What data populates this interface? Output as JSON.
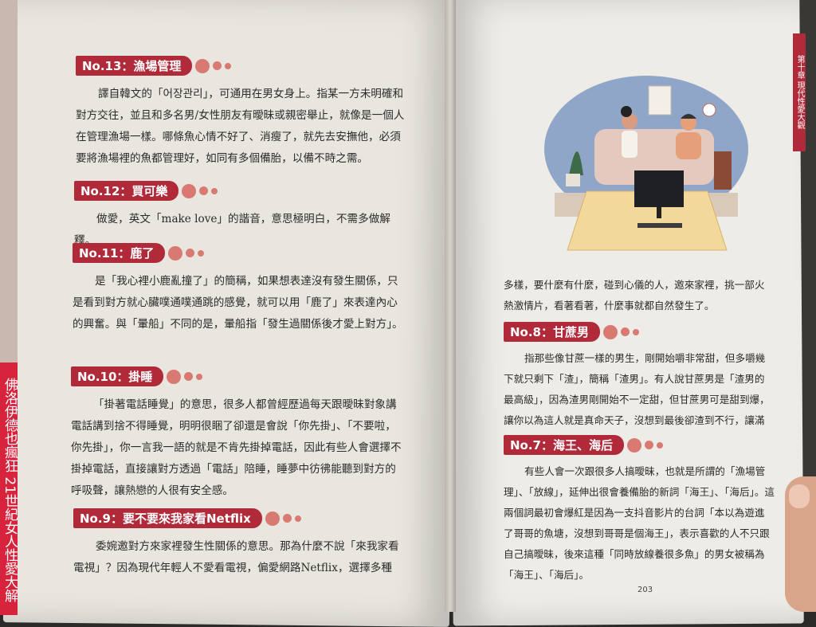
{
  "cover_spine": "佛洛伊德也瘋狂 21世紀女人性愛大解",
  "side_tab": "第十章 現代性愛大觀",
  "page_number": "203",
  "left": [
    {
      "tag": "No.13：漁場管理",
      "text": "譯自韓文的「어장관리」，可通用在男女身上。指某一方未明確和對方交往，並且和多名男/女性朋友有曖昧或親密舉止，就像是一個人在管理漁場一樣。哪條魚心情不好了、消瘦了，就先去安撫他，必須要將漁場裡的魚都管理好，如同有多個備胎，以備不時之需。"
    },
    {
      "tag": "No.12：買可樂",
      "text": "做愛，英文「make love」的諧音，意思極明白，不需多做解釋。"
    },
    {
      "tag": "No.11：鹿了",
      "text": "是「我心裡小鹿亂撞了」的簡稱，如果想表達沒有發生關係，只是看到對方就心臟噗通噗通跳的感覺，就可以用「鹿了」來表達內心的興奮。與「暈船」不同的是，暈船指「發生過關係後才愛上對方」。"
    },
    {
      "tag": "No.10：掛睡",
      "text": "「掛著電話睡覺」的意思，很多人都曾經歷過每天跟曖昧對象講電話講到捨不得睡覺，明明很睏了卻還是會說「你先掛」、「不要啦，你先掛」，你一言我一語的就是不肯先掛掉電話，因此有些人會選擇不掛掉電話，直接讓對方透過「電話」陪睡，睡夢中彷彿能聽到對方的呼吸聲，讓熱戀的人很有安全感。"
    },
    {
      "tag": "No.9：要不要來我家看Netflix",
      "text": "委婉邀對方來家裡發生性關係的意思。那為什麼不說「來我家看電視」？因為現代年輕人不愛看電視，偏愛網路Netflix，選擇多種"
    }
  ],
  "right": {
    "intro": "多樣，要什麼有什麼，碰到心儀的人，邀來家裡，挑一部火熱激情片，看著看著，什麼事就都自然發生了。",
    "sections": [
      {
        "tag": "No.8：甘蔗男",
        "text": "指那些像甘蔗一樣的男生，剛開始嚼非常甜，但多嚼幾下就只剩下「渣」，簡稱「渣男」。有人說甘蔗男是「渣男的最高級」，因為渣男剛開始不一定甜，但甘蔗男可是甜到爆，讓你以為這人就是真命天子，沒想到最後卻渣到不行，讓滿嘴的渣弄得你傷痕累累。"
      },
      {
        "tag": "No.7：海王、海后",
        "text": "有些人會一次跟很多人搞曖昧，也就是所謂的「漁場管理」、「放線」，延伸出很會養備胎的新詞「海王」、「海后」。這兩個詞最初會爆紅是因為一支抖音影片的台詞「本以為遊進了哥哥的魚塘，沒想到哥哥是個海王」，表示喜歡的人不只跟自己搞曖昧，後來這種「同時放線養很多魚」的男女被稱為「海王」、「海后」。"
      }
    ]
  }
}
